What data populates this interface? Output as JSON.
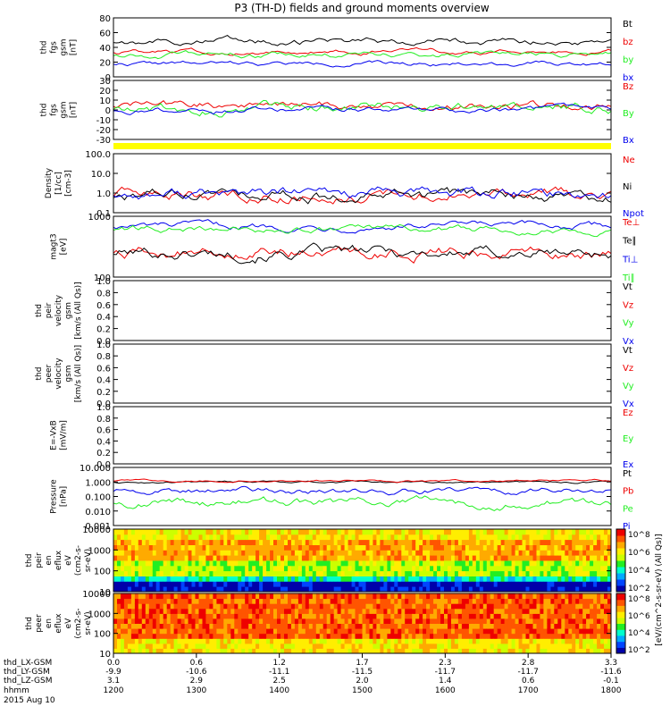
{
  "title": "P3 (TH-D) fields and ground moments overview",
  "colors": {
    "black": "#000000",
    "red": "#ee0000",
    "green": "#22ee22",
    "blue": "#0000ee",
    "yellow": "#ffff00"
  },
  "chart_data": [
    {
      "type": "line",
      "panel": "fgs_btot",
      "ylabel": [
        "thd",
        "fgs",
        "gsm",
        "[nT]"
      ],
      "yticks": [
        "80",
        "60",
        "40",
        "20",
        "0"
      ],
      "ylim": [
        0,
        80
      ],
      "series": [
        {
          "name": "Bt",
          "color": "black",
          "base": 48,
          "amp": 6
        },
        {
          "name": "bz",
          "color": "red",
          "base": 34,
          "amp": 4
        },
        {
          "name": "by",
          "color": "green",
          "base": 30,
          "amp": 5
        },
        {
          "name": "bx",
          "color": "blue",
          "base": 18,
          "amp": 4
        }
      ],
      "legend": [
        "Bt",
        "bz",
        "by",
        "bx"
      ],
      "legend_colors": [
        "black",
        "red",
        "green",
        "blue"
      ]
    },
    {
      "type": "line",
      "panel": "fgs_components",
      "ylabel": [
        "thd",
        "fgs",
        "gsm",
        "[nT]"
      ],
      "yticks": [
        "30",
        "20",
        "10",
        "0",
        "-10",
        "-20",
        "-30"
      ],
      "ylim": [
        -30,
        30
      ],
      "series": [
        {
          "name": "Bz",
          "color": "red",
          "base": 5,
          "amp": 6
        },
        {
          "name": "By",
          "color": "green",
          "base": 2,
          "amp": 7
        },
        {
          "name": "Bx",
          "color": "blue",
          "base": 0,
          "amp": 4
        }
      ],
      "legend": [
        "Bz",
        "By",
        "Bx"
      ],
      "legend_colors": [
        "red",
        "green",
        "blue"
      ]
    },
    {
      "type": "line",
      "panel": "density",
      "ylabel": [
        "Density",
        "[1/cc]",
        "[cm-3]"
      ],
      "yticks": [
        "100.0",
        "10.0",
        "1.0",
        "0.1"
      ],
      "ylim": [
        0.1,
        100
      ],
      "log": true,
      "series": [
        {
          "name": "Ne",
          "color": "red",
          "base": 0.8,
          "amp": 0.4
        },
        {
          "name": "Ni",
          "color": "black",
          "base": 0.7,
          "amp": 0.4
        },
        {
          "name": "Npot",
          "color": "blue",
          "base": 0.9,
          "amp": 0.4
        }
      ],
      "legend": [
        "Ne",
        "Ni",
        "Npot"
      ],
      "legend_colors": [
        "red",
        "black",
        "blue"
      ]
    },
    {
      "type": "line",
      "panel": "temperature",
      "ylabel": [
        "magt3",
        "[eV]"
      ],
      "yticks": [
        "1000",
        "100"
      ],
      "ylim": [
        20,
        8000
      ],
      "log": true,
      "series": [
        {
          "name": "Te⊥",
          "color": "red",
          "base": 250,
          "amp": 0.35
        },
        {
          "name": "Te∥",
          "color": "black",
          "base": 220,
          "amp": 0.35
        },
        {
          "name": "Ti⊥",
          "color": "blue",
          "base": 3000,
          "amp": 0.2
        },
        {
          "name": "Ti∥",
          "color": "green",
          "base": 2200,
          "amp": 0.2
        }
      ],
      "legend": [
        "Te⊥",
        "Te∥",
        "Ti⊥",
        "Ti∥"
      ],
      "legend_colors": [
        "red",
        "black",
        "blue",
        "green"
      ]
    },
    {
      "type": "line",
      "panel": "ion_velocity",
      "ylabel": [
        "thd",
        "peir",
        "velocity",
        "gsm",
        "[km/s (All Qs)]"
      ],
      "yticks": [
        "1.0",
        "0.8",
        "0.6",
        "0.4",
        "0.2",
        "0.0"
      ],
      "ylim": [
        0,
        1
      ],
      "series": [],
      "legend": [
        "Vt",
        "Vz",
        "Vy",
        "Vx"
      ],
      "legend_colors": [
        "black",
        "red",
        "green",
        "blue"
      ]
    },
    {
      "type": "line",
      "panel": "electron_velocity",
      "ylabel": [
        "thd",
        "peer",
        "velocity",
        "gsm",
        "[km/s (All Qs)]"
      ],
      "yticks": [
        "1.0",
        "0.8",
        "0.6",
        "0.4",
        "0.2",
        "0.0"
      ],
      "ylim": [
        0,
        1
      ],
      "series": [],
      "legend": [
        "Vt",
        "Vz",
        "Vy",
        "Vx"
      ],
      "legend_colors": [
        "black",
        "red",
        "green",
        "blue"
      ]
    },
    {
      "type": "line",
      "panel": "efield",
      "ylabel": [
        "E=-VxB",
        "[mV/m]"
      ],
      "yticks": [
        "1.0",
        "0.8",
        "0.6",
        "0.4",
        "0.2",
        "0.0"
      ],
      "ylim": [
        0,
        1
      ],
      "series": [],
      "legend": [
        "Ez",
        "Ey",
        "Ex"
      ],
      "legend_colors": [
        "red",
        "green",
        "blue"
      ]
    },
    {
      "type": "line",
      "panel": "pressure",
      "ylabel": [
        "Pressure",
        "[nPa]"
      ],
      "yticks": [
        "10.000",
        "1.000",
        "0.100",
        "0.010",
        "0.001"
      ],
      "ylim": [
        0.001,
        10
      ],
      "log": true,
      "series": [
        {
          "name": "Pt",
          "color": "black",
          "base": 1.0,
          "amp": 0.1
        },
        {
          "name": "Pb",
          "color": "red",
          "base": 1.2,
          "amp": 0.1
        },
        {
          "name": "Pe",
          "color": "green",
          "base": 0.04,
          "amp": 0.4
        },
        {
          "name": "Pi",
          "color": "blue",
          "base": 0.25,
          "amp": 0.3
        }
      ],
      "legend": [
        "Pt",
        "Pb",
        "Pe",
        "Pi"
      ],
      "legend_colors": [
        "black",
        "red",
        "green",
        "blue"
      ]
    },
    {
      "type": "heatmap",
      "panel": "ion_spectrogram",
      "ylabel": [
        "thd",
        "peir",
        "en",
        "eflux",
        "eV",
        "(cm2-s-",
        "sr-eV)"
      ],
      "yticks": [
        "10000",
        "1000",
        "100",
        "10"
      ],
      "ylim": [
        5,
        30000
      ],
      "colorbar_ticks": [
        "10^8",
        "10^6",
        "10^4",
        "10^2"
      ]
    },
    {
      "type": "heatmap",
      "panel": "electron_spectrogram",
      "ylabel": [
        "thd",
        "peer",
        "en",
        "eflux",
        "eV",
        "(cm2-s-",
        "sr-eV)"
      ],
      "yticks": [
        "10000",
        "1000",
        "100",
        "10"
      ],
      "ylim": [
        5,
        30000
      ],
      "colorbar_ticks": [
        "10^8",
        "10^6",
        "10^4",
        "10^2"
      ]
    }
  ],
  "colorbar_label": "[eV/(cm^2-s-sr-eV) (All Qs)]",
  "x_axis": {
    "row_labels": [
      "thd_LX-GSM",
      "thd_LY-GSM",
      "thd_LZ-GSM",
      "hhmm",
      "2015 Aug 10"
    ],
    "hhmm": [
      "1200",
      "1300",
      "1400",
      "1500",
      "1600",
      "1700",
      "1800"
    ],
    "lx": [
      "0.0",
      "0.6",
      "1.2",
      "1.7",
      "2.3",
      "2.8",
      "3.3"
    ],
    "ly": [
      "-9.9",
      "-10.6",
      "-11.1",
      "-11.5",
      "-11.7",
      "-11.7",
      "-11.6"
    ],
    "lz": [
      "3.1",
      "2.9",
      "2.5",
      "2.0",
      "1.4",
      "0.6",
      "-0.1"
    ]
  }
}
